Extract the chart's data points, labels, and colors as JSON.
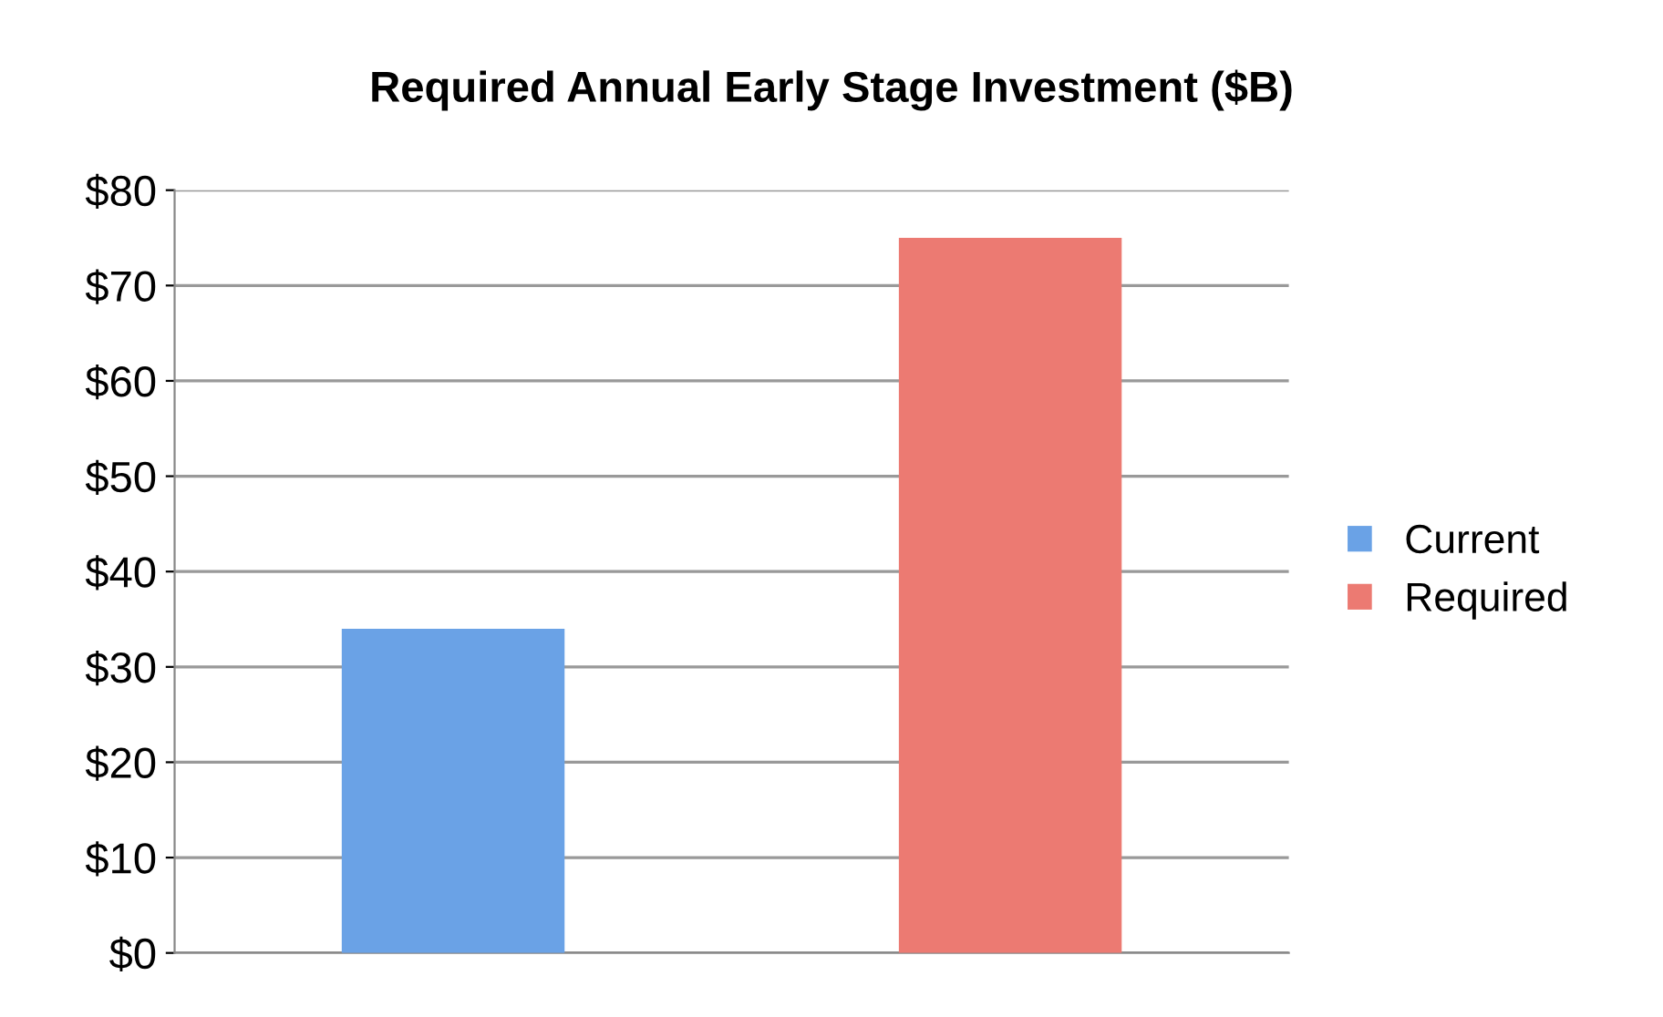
{
  "chart_data": {
    "type": "bar",
    "title": "Required Annual Early Stage Investment ($B)",
    "categories": [
      null,
      null
    ],
    "series": [
      {
        "name": "Current",
        "color": "#6aa2e6",
        "values": [
          34,
          null
        ]
      },
      {
        "name": "Required",
        "color": "#ec7a72",
        "values": [
          null,
          75
        ]
      }
    ],
    "ylim": [
      0,
      80
    ],
    "yticks": [
      {
        "value": 0,
        "label": "$0"
      },
      {
        "value": 10,
        "label": "$10"
      },
      {
        "value": 20,
        "label": "$20"
      },
      {
        "value": 30,
        "label": "$30"
      },
      {
        "value": 40,
        "label": "$40"
      },
      {
        "value": 50,
        "label": "$50"
      },
      {
        "value": 60,
        "label": "$60"
      },
      {
        "value": 70,
        "label": "$70"
      },
      {
        "value": 80,
        "label": "$80"
      }
    ],
    "grid": "y",
    "legend": "right"
  }
}
